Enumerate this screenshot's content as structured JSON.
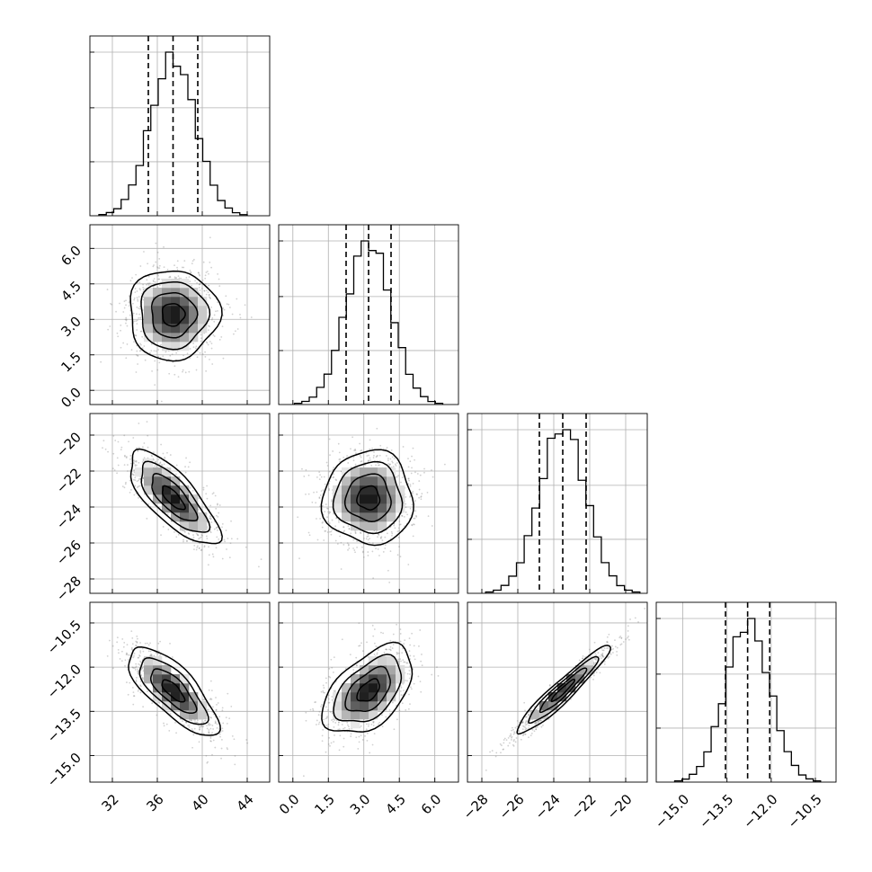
{
  "chart_data": {
    "type": "corner",
    "title": "",
    "grid": true,
    "parameters": [
      {
        "index": 0,
        "range": [
          30,
          46
        ],
        "ticks": [
          32,
          36,
          40,
          44
        ],
        "tick_labels": [
          "32",
          "36",
          "40",
          "44"
        ],
        "quantiles": [
          35.2,
          37.4,
          39.6
        ],
        "mean": 37.4,
        "sd": 2.0
      },
      {
        "index": 1,
        "range": [
          -0.6,
          7.0
        ],
        "ticks": [
          0.0,
          1.5,
          3.0,
          4.5,
          6.0
        ],
        "tick_labels": [
          "0.0",
          "1.5",
          "3.0",
          "4.5",
          "6.0"
        ],
        "quantiles": [
          2.25,
          3.2,
          4.15
        ],
        "mean": 3.2,
        "sd": 0.95
      },
      {
        "index": 2,
        "range": [
          -28.8,
          -18.8
        ],
        "ticks": [
          -28,
          -26,
          -24,
          -22,
          -20
        ],
        "tick_labels": [
          "−28",
          "−26",
          "−24",
          "−22",
          "−20"
        ],
        "quantiles": [
          -24.8,
          -23.5,
          -22.2
        ],
        "mean": -23.5,
        "sd": 1.3
      },
      {
        "index": 3,
        "range": [
          -15.9,
          -9.8
        ],
        "ticks": [
          -15.0,
          -13.5,
          -12.0,
          -10.5
        ],
        "tick_labels": [
          "−15.0",
          "−13.5",
          "−12.0",
          "−10.5"
        ],
        "quantiles": [
          -13.55,
          -12.8,
          -12.05
        ],
        "mean": -12.8,
        "sd": 0.75
      }
    ],
    "correlations": [
      {
        "pair": [
          1,
          0
        ],
        "rho": 0.0
      },
      {
        "pair": [
          2,
          0
        ],
        "rho": -0.75
      },
      {
        "pair": [
          2,
          1
        ],
        "rho": 0.0
      },
      {
        "pair": [
          3,
          0
        ],
        "rho": -0.75
      },
      {
        "pair": [
          3,
          1
        ],
        "rho": 0.5
      },
      {
        "pair": [
          3,
          2
        ],
        "rho": 0.95
      }
    ],
    "histogram_bins": 20,
    "contour_levels_sigma": [
      0.5,
      1.0,
      1.5,
      2.0
    ],
    "quantile_levels": [
      0.16,
      0.5,
      0.84
    ]
  }
}
